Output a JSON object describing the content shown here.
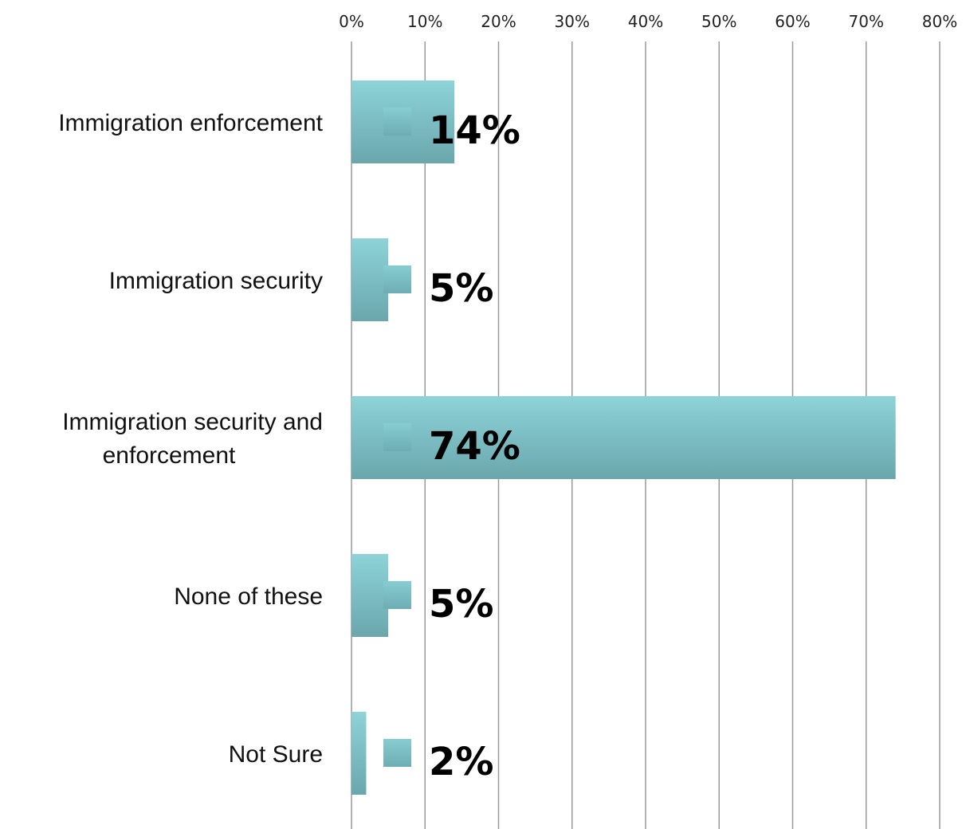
{
  "chart_data": {
    "type": "bar",
    "orientation": "horizontal",
    "categories": [
      [
        "Immigration enforcement"
      ],
      [
        "Immigration security"
      ],
      [
        "Immigration security and",
        "enforcement"
      ],
      [
        "None of these"
      ],
      [
        "Not Sure"
      ]
    ],
    "values": [
      14,
      5,
      74,
      5,
      2
    ],
    "data_labels": [
      "14%",
      "5%",
      "74%",
      "5%",
      "2%"
    ],
    "xlim": [
      0,
      80
    ],
    "x_ticks": [
      0,
      10,
      20,
      30,
      40,
      50,
      60,
      70,
      80
    ],
    "x_tick_labels": [
      "0%",
      "10%",
      "20%",
      "30%",
      "40%",
      "50%",
      "60%",
      "70%",
      "80%"
    ],
    "x_axis_position": "top",
    "grid": true,
    "legend": "none",
    "colors": {
      "bar_top": "#8dd3d8",
      "bar_bottom": "#6aa7ad",
      "marker": "#7cc0c6",
      "grid": "#9a9a9a"
    }
  }
}
